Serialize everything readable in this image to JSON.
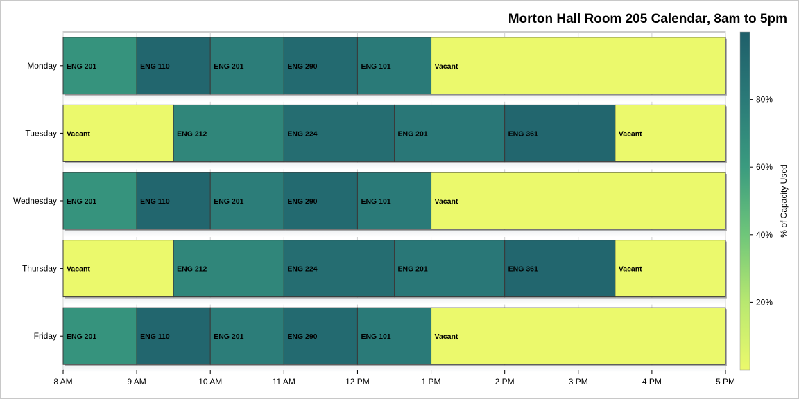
{
  "chart_data": {
    "type": "bar",
    "orientation": "horizontal",
    "title": "Morton Hall Room 205 Calendar, 8am to 5pm",
    "xlabel": "",
    "ylabel": "",
    "x_ticks": [
      "8 AM",
      "9 AM",
      "10 AM",
      "11 AM",
      "12 PM",
      "1 PM",
      "2 PM",
      "3 PM",
      "4 PM",
      "5 PM"
    ],
    "xlim": [
      8,
      17
    ],
    "grid": true,
    "colorbar": {
      "title": "% of Capacity Used",
      "ticks": [
        {
          "value": 20,
          "label": "20%"
        },
        {
          "value": 40,
          "label": "40%"
        },
        {
          "value": 60,
          "label": "60%"
        },
        {
          "value": 80,
          "label": "80%"
        }
      ],
      "range": [
        0,
        100
      ],
      "colors": [
        "#ebf96c",
        "#3a9b7f",
        "#1f5f6a"
      ],
      "placement": "right"
    },
    "days": [
      {
        "name": "Monday",
        "events": [
          {
            "label": "ENG 201",
            "start": 8,
            "end": 9,
            "capacity": 65
          },
          {
            "label": "ENG 110",
            "start": 9,
            "end": 10,
            "capacity": 95
          },
          {
            "label": "ENG 201",
            "start": 10,
            "end": 11,
            "capacity": 78
          },
          {
            "label": "ENG 290",
            "start": 11,
            "end": 12,
            "capacity": 92
          },
          {
            "label": "ENG 101",
            "start": 12,
            "end": 13,
            "capacity": 80
          },
          {
            "label": "Vacant",
            "start": 13,
            "end": 17,
            "capacity": 0
          }
        ]
      },
      {
        "name": "Tuesday",
        "events": [
          {
            "label": "Vacant",
            "start": 8,
            "end": 9.5,
            "capacity": 0
          },
          {
            "label": "ENG 212",
            "start": 9.5,
            "end": 11,
            "capacity": 73
          },
          {
            "label": "ENG 224",
            "start": 11,
            "end": 12.5,
            "capacity": 90
          },
          {
            "label": "ENG 201",
            "start": 12.5,
            "end": 14,
            "capacity": 82
          },
          {
            "label": "ENG 361",
            "start": 14,
            "end": 15.5,
            "capacity": 95
          },
          {
            "label": "Vacant",
            "start": 15.5,
            "end": 17,
            "capacity": 0
          }
        ]
      },
      {
        "name": "Wednesday",
        "events": [
          {
            "label": "ENG 201",
            "start": 8,
            "end": 9,
            "capacity": 65
          },
          {
            "label": "ENG 110",
            "start": 9,
            "end": 10,
            "capacity": 95
          },
          {
            "label": "ENG 201",
            "start": 10,
            "end": 11,
            "capacity": 78
          },
          {
            "label": "ENG 290",
            "start": 11,
            "end": 12,
            "capacity": 92
          },
          {
            "label": "ENG 101",
            "start": 12,
            "end": 13,
            "capacity": 80
          },
          {
            "label": "Vacant",
            "start": 13,
            "end": 17,
            "capacity": 0
          }
        ]
      },
      {
        "name": "Thursday",
        "events": [
          {
            "label": "Vacant",
            "start": 8,
            "end": 9.5,
            "capacity": 0
          },
          {
            "label": "ENG 212",
            "start": 9.5,
            "end": 11,
            "capacity": 73
          },
          {
            "label": "ENG 224",
            "start": 11,
            "end": 12.5,
            "capacity": 90
          },
          {
            "label": "ENG 201",
            "start": 12.5,
            "end": 14,
            "capacity": 82
          },
          {
            "label": "ENG 361",
            "start": 14,
            "end": 15.5,
            "capacity": 95
          },
          {
            "label": "Vacant",
            "start": 15.5,
            "end": 17,
            "capacity": 0
          }
        ]
      },
      {
        "name": "Friday",
        "events": [
          {
            "label": "ENG 201",
            "start": 8,
            "end": 9,
            "capacity": 65
          },
          {
            "label": "ENG 110",
            "start": 9,
            "end": 10,
            "capacity": 95
          },
          {
            "label": "ENG 201",
            "start": 10,
            "end": 11,
            "capacity": 78
          },
          {
            "label": "ENG 290",
            "start": 11,
            "end": 12,
            "capacity": 92
          },
          {
            "label": "ENG 101",
            "start": 12,
            "end": 13,
            "capacity": 80
          },
          {
            "label": "Vacant",
            "start": 13,
            "end": 17,
            "capacity": 0
          }
        ]
      }
    ]
  }
}
